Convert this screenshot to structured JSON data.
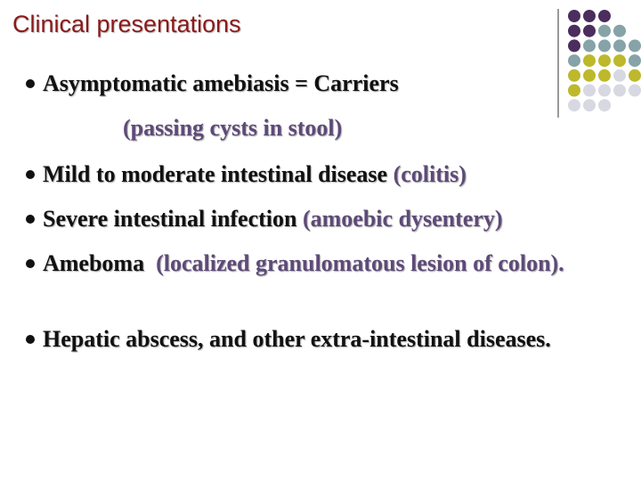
{
  "title": "Clinical presentations",
  "items": [
    {
      "text": "Asymptomatic amebiasis = Carriers",
      "note": "(passing cysts in stool)"
    },
    {
      "text": "Mild to moderate intestinal disease",
      "note": "(colitis)"
    },
    {
      "text": "Severe intestinal infection",
      "note": "(amoebic dysentery)"
    },
    {
      "text": "Ameboma",
      "note": "(localized granulomatous lesion of colon)."
    },
    {
      "text": "Hepatic abscess, and other extra-intestinal diseases."
    }
  ]
}
